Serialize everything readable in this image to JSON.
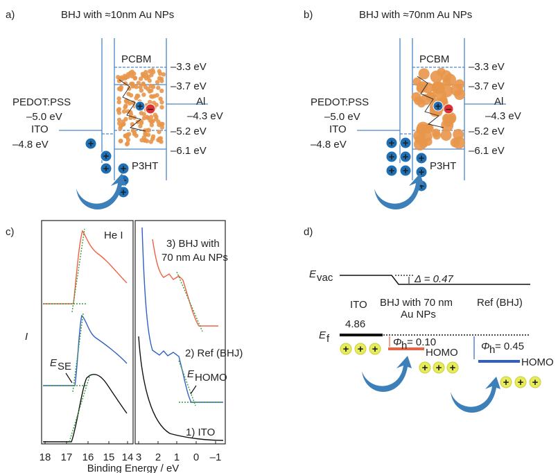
{
  "panel_a": {
    "label": "a)",
    "title": "BHJ with ≈10nm Au NPs",
    "acceptor": "PCBM",
    "acceptor_lumo": "–3.3 eV",
    "acceptor_level": "–3.7 eV",
    "cathode": "Al",
    "cathode_wf": "–4.3 eV",
    "hole_layer": "PEDOT:PSS",
    "hole_layer_wf": "–5.0 eV",
    "anode": "ITO",
    "anode_wf": "–4.8 eV",
    "donor_homo": "–5.2 eV",
    "acceptor_homo": "–6.1 eV",
    "donor": "P3HT"
  },
  "panel_b": {
    "label": "b)",
    "title": "BHJ with ≈70nm Au NPs",
    "acceptor": "PCBM",
    "acceptor_lumo": "–3.3 eV",
    "acceptor_level": "–3.7 eV",
    "cathode": "Al",
    "cathode_wf": "–4.3 eV",
    "hole_layer": "PEDOT:PSS",
    "hole_layer_wf": "–5.0 eV",
    "anode": "ITO",
    "anode_wf": "–4.8 eV",
    "donor_homo": "–5.2 eV",
    "acceptor_homo": "–6.1 eV",
    "donor": "P3HT"
  },
  "panel_c": {
    "label": "c)",
    "y_label": "I",
    "source": "He I",
    "curve_3": [
      "3) BHJ with",
      "70 nm Au NPs"
    ],
    "curve_2": "2) Ref (BHJ)",
    "curve_1": "1) ITO",
    "e_se": {
      "symbol": "E",
      "subscript": "SE"
    },
    "e_homo": {
      "symbol": "E",
      "subscript": "HOMO"
    },
    "left_ticks": [
      "18",
      "17",
      "16",
      "15",
      "14"
    ],
    "right_ticks": [
      "3",
      "2",
      "1",
      "0",
      "–1"
    ],
    "x_label": "Binding Energy / eV"
  },
  "panel_d": {
    "label": "d)",
    "e_vac": {
      "symbol": "E",
      "subscript": "vac"
    },
    "delta": "Δ = 0.47",
    "ito": "ITO",
    "bhj": [
      "BHJ with 70 nm",
      "Au NPs"
    ],
    "ref": "Ref (BHJ)",
    "e_f": {
      "symbol": "E",
      "subscript": "f"
    },
    "ito_wf": "4.86",
    "phi_bhj": {
      "symbol": "Φ",
      "subscript": "h",
      "value": "= 0.10"
    },
    "homo_bhj": "HOMO",
    "phi_ref": {
      "symbol": "Φ",
      "subscript": "h",
      "value": "= 0.45"
    },
    "homo_ref": "HOMO"
  },
  "symbols": {
    "hole": "+",
    "electron": "–"
  }
}
